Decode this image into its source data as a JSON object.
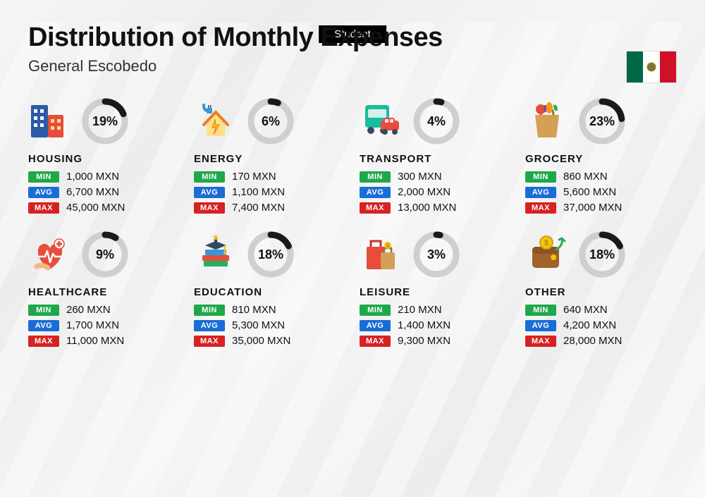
{
  "badge": "Student",
  "title": "Distribution of Monthly Expenses",
  "subtitle": "General Escobedo",
  "currency": "MXN",
  "labels": {
    "min": "MIN",
    "avg": "AVG",
    "max": "MAX"
  },
  "colors": {
    "min": "#1fa84a",
    "avg": "#1a6dd6",
    "max": "#d62222",
    "donut_fg": "#1a1a1a",
    "donut_bg": "#cfcfcf"
  },
  "donut": {
    "radius": 28,
    "stroke": 9
  },
  "flag": {
    "left": "#006847",
    "mid": "#ffffff",
    "right": "#ce1126"
  },
  "categories": [
    {
      "name": "HOUSING",
      "percent": 19,
      "min": "1,000",
      "avg": "6,700",
      "max": "45,000",
      "icon": "housing"
    },
    {
      "name": "ENERGY",
      "percent": 6,
      "min": "170",
      "avg": "1,100",
      "max": "7,400",
      "icon": "energy"
    },
    {
      "name": "TRANSPORT",
      "percent": 4,
      "min": "300",
      "avg": "2,000",
      "max": "13,000",
      "icon": "transport"
    },
    {
      "name": "GROCERY",
      "percent": 23,
      "min": "860",
      "avg": "5,600",
      "max": "37,000",
      "icon": "grocery"
    },
    {
      "name": "HEALTHCARE",
      "percent": 9,
      "min": "260",
      "avg": "1,700",
      "max": "11,000",
      "icon": "healthcare"
    },
    {
      "name": "EDUCATION",
      "percent": 18,
      "min": "810",
      "avg": "5,300",
      "max": "35,000",
      "icon": "education"
    },
    {
      "name": "LEISURE",
      "percent": 3,
      "min": "210",
      "avg": "1,400",
      "max": "9,300",
      "icon": "leisure"
    },
    {
      "name": "OTHER",
      "percent": 18,
      "min": "640",
      "avg": "4,200",
      "max": "28,000",
      "icon": "other"
    }
  ]
}
